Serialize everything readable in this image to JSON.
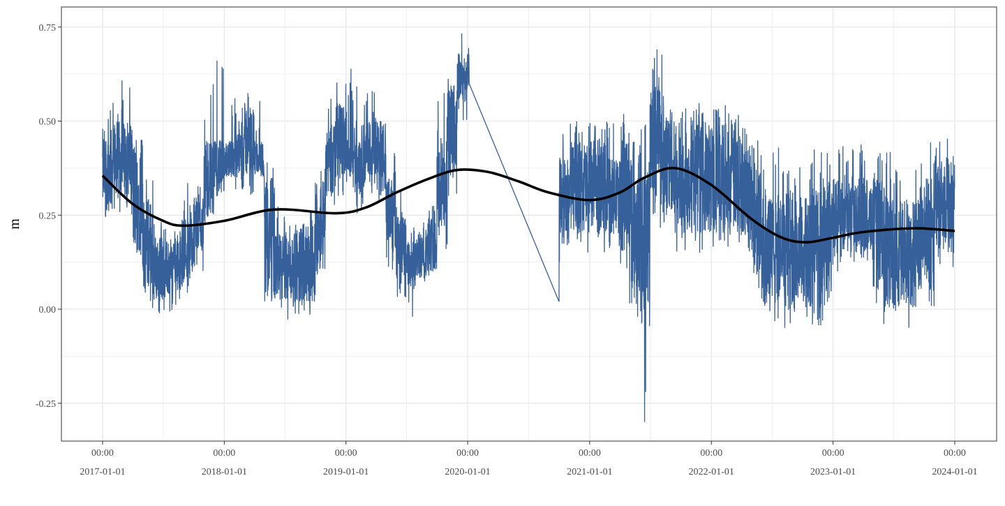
{
  "chart_data": {
    "type": "line",
    "title": "",
    "xlabel": "",
    "ylabel": "m",
    "ylim": [
      -0.35,
      0.78
    ],
    "xlim": [
      "2016-08-28",
      "2024-05-05"
    ],
    "grid": true,
    "legend": "none",
    "colors": {
      "series": "#36609a",
      "trend": "#000000",
      "grid": "#ebebeb",
      "panel_border": "#333333"
    },
    "y_ticks": [
      {
        "value": 0.75,
        "label": "0.75"
      },
      {
        "value": 0.5,
        "label": "0.50"
      },
      {
        "value": 0.25,
        "label": "0.25"
      },
      {
        "value": 0.0,
        "label": "0.00"
      },
      {
        "value": -0.25,
        "label": "-0.25"
      }
    ],
    "x_ticks": [
      {
        "date": "2017-01-01",
        "time": "00:00",
        "label": "2017-01-01"
      },
      {
        "date": "2018-01-01",
        "time": "00:00",
        "label": "2018-01-01"
      },
      {
        "date": "2019-01-01",
        "time": "00:00",
        "label": "2019-01-01"
      },
      {
        "date": "2020-01-01",
        "time": "00:00",
        "label": "2020-01-01"
      },
      {
        "date": "2021-01-01",
        "time": "00:00",
        "label": "2021-01-01"
      },
      {
        "date": "2022-01-01",
        "time": "00:00",
        "label": "2022-01-01"
      },
      {
        "date": "2023-01-01",
        "time": "00:00",
        "label": "2023-01-01"
      },
      {
        "date": "2024-01-01",
        "time": "00:00",
        "label": "2024-01-01"
      }
    ],
    "series_envelope_columns": [
      "month",
      "low",
      "high",
      "peak"
    ],
    "series_envelope": [
      [
        "2017-01",
        0.26,
        0.48,
        0.56
      ],
      [
        "2017-02",
        0.3,
        0.5,
        0.62
      ],
      [
        "2017-03",
        0.3,
        0.5,
        0.6
      ],
      [
        "2017-04",
        0.15,
        0.45,
        0.45
      ],
      [
        "2017-05",
        0.05,
        0.3,
        0.35
      ],
      [
        "2017-06",
        0.02,
        0.2,
        0.25
      ],
      [
        "2017-07",
        0.03,
        0.18,
        0.22
      ],
      [
        "2017-08",
        0.05,
        0.2,
        0.24
      ],
      [
        "2017-09",
        0.08,
        0.25,
        0.34
      ],
      [
        "2017-10",
        0.15,
        0.3,
        0.34
      ],
      [
        "2017-11",
        0.25,
        0.45,
        0.6
      ],
      [
        "2017-12",
        0.3,
        0.45,
        0.67
      ],
      [
        "2018-01",
        0.35,
        0.45,
        0.58
      ],
      [
        "2018-02",
        0.35,
        0.5,
        0.58
      ],
      [
        "2018-03",
        0.35,
        0.55,
        0.58
      ],
      [
        "2018-04",
        0.35,
        0.45,
        0.6
      ],
      [
        "2018-05",
        0.02,
        0.35,
        0.4
      ],
      [
        "2018-06",
        0.02,
        0.2,
        0.28
      ],
      [
        "2018-07",
        0.02,
        0.2,
        0.26
      ],
      [
        "2018-08",
        0.02,
        0.22,
        0.25
      ],
      [
        "2018-09",
        0.02,
        0.22,
        0.26
      ],
      [
        "2018-10",
        0.1,
        0.35,
        0.4
      ],
      [
        "2018-11",
        0.3,
        0.5,
        0.57
      ],
      [
        "2018-12",
        0.35,
        0.55,
        0.68
      ],
      [
        "2019-01",
        0.35,
        0.45,
        0.67
      ],
      [
        "2019-02",
        0.3,
        0.45,
        0.6
      ],
      [
        "2019-03",
        0.35,
        0.5,
        0.58
      ],
      [
        "2019-04",
        0.3,
        0.5,
        0.5
      ],
      [
        "2019-05",
        0.15,
        0.35,
        0.42
      ],
      [
        "2019-06",
        0.08,
        0.25,
        0.32
      ],
      [
        "2019-07",
        0.05,
        0.18,
        0.22
      ],
      [
        "2019-08",
        0.08,
        0.2,
        0.25
      ],
      [
        "2019-09",
        0.1,
        0.25,
        0.3
      ],
      [
        "2019-10",
        0.2,
        0.45,
        0.58
      ],
      [
        "2019-11",
        0.35,
        0.6,
        0.68
      ],
      [
        "2019-12",
        0.55,
        0.68,
        0.75
      ],
      [
        "2020-01",
        0.58,
        0.7,
        0.7
      ],
      [
        "2020-10",
        0.17,
        0.4,
        0.48
      ],
      [
        "2020-11",
        0.2,
        0.45,
        0.5
      ],
      [
        "2020-12",
        0.2,
        0.45,
        0.5
      ],
      [
        "2021-01",
        0.2,
        0.45,
        0.5
      ],
      [
        "2021-02",
        0.2,
        0.45,
        0.5
      ],
      [
        "2021-03",
        0.2,
        0.4,
        0.5
      ],
      [
        "2021-04",
        0.15,
        0.45,
        0.52
      ],
      [
        "2021-05",
        0.05,
        0.4,
        0.45
      ],
      [
        "2021-06",
        0.0,
        0.4,
        0.5
      ],
      [
        "2021-07",
        0.3,
        0.6,
        0.7
      ],
      [
        "2021-08",
        0.25,
        0.55,
        0.71
      ],
      [
        "2021-09",
        0.2,
        0.5,
        0.55
      ],
      [
        "2021-10",
        0.2,
        0.5,
        0.55
      ],
      [
        "2021-11",
        0.2,
        0.5,
        0.55
      ],
      [
        "2021-12",
        0.2,
        0.5,
        0.53
      ],
      [
        "2022-01",
        0.2,
        0.5,
        0.55
      ],
      [
        "2022-02",
        0.2,
        0.5,
        0.55
      ],
      [
        "2022-03",
        0.2,
        0.5,
        0.53
      ],
      [
        "2022-04",
        0.2,
        0.45,
        0.5
      ],
      [
        "2022-05",
        0.1,
        0.4,
        0.45
      ],
      [
        "2022-06",
        0.0,
        0.3,
        0.4
      ],
      [
        "2022-07",
        0.0,
        0.3,
        0.43
      ],
      [
        "2022-08",
        0.0,
        0.3,
        0.4
      ],
      [
        "2022-09",
        0.0,
        0.3,
        0.4
      ],
      [
        "2022-10",
        0.0,
        0.3,
        0.4
      ],
      [
        "2022-11",
        0.0,
        0.35,
        0.43
      ],
      [
        "2022-12",
        0.05,
        0.35,
        0.43
      ],
      [
        "2023-01",
        0.15,
        0.35,
        0.45
      ],
      [
        "2023-02",
        0.15,
        0.35,
        0.44
      ],
      [
        "2023-03",
        0.15,
        0.35,
        0.44
      ],
      [
        "2023-04",
        0.15,
        0.35,
        0.43
      ],
      [
        "2023-05",
        0.05,
        0.35,
        0.43
      ],
      [
        "2023-06",
        0.0,
        0.3,
        0.42
      ],
      [
        "2023-07",
        0.0,
        0.3,
        0.4
      ],
      [
        "2023-08",
        0.0,
        0.3,
        0.4
      ],
      [
        "2023-09",
        0.05,
        0.3,
        0.42
      ],
      [
        "2023-10",
        0.05,
        0.35,
        0.45
      ],
      [
        "2023-11",
        0.15,
        0.4,
        0.46
      ],
      [
        "2023-12",
        0.15,
        0.4,
        0.46
      ]
    ],
    "series_extremes": [
      {
        "date": "2020-10-01",
        "value": 0.02
      },
      {
        "date": "2021-05-25",
        "value": -0.02
      },
      {
        "date": "2021-06-15",
        "value": -0.3
      },
      {
        "date": "2021-06-18",
        "value": -0.22
      },
      {
        "date": "2019-07-20",
        "value": -0.02
      }
    ],
    "trend": [
      [
        "2017-01-01",
        0.355
      ],
      [
        "2017-04-01",
        0.28
      ],
      [
        "2017-07-01",
        0.235
      ],
      [
        "2017-09-01",
        0.222
      ],
      [
        "2018-01-01",
        0.235
      ],
      [
        "2018-06-01",
        0.265
      ],
      [
        "2018-12-01",
        0.255
      ],
      [
        "2019-03-01",
        0.27
      ],
      [
        "2019-06-01",
        0.31
      ],
      [
        "2019-09-01",
        0.345
      ],
      [
        "2019-12-01",
        0.37
      ],
      [
        "2020-03-01",
        0.365
      ],
      [
        "2020-06-01",
        0.34
      ],
      [
        "2020-09-01",
        0.31
      ],
      [
        "2021-01-01",
        0.29
      ],
      [
        "2021-04-01",
        0.31
      ],
      [
        "2021-06-15",
        0.35
      ],
      [
        "2021-09-15",
        0.375
      ],
      [
        "2022-01-01",
        0.33
      ],
      [
        "2022-05-01",
        0.24
      ],
      [
        "2022-08-01",
        0.19
      ],
      [
        "2022-10-15",
        0.178
      ],
      [
        "2023-01-01",
        0.19
      ],
      [
        "2023-04-01",
        0.205
      ],
      [
        "2023-09-01",
        0.215
      ],
      [
        "2024-01-01",
        0.208
      ]
    ]
  }
}
